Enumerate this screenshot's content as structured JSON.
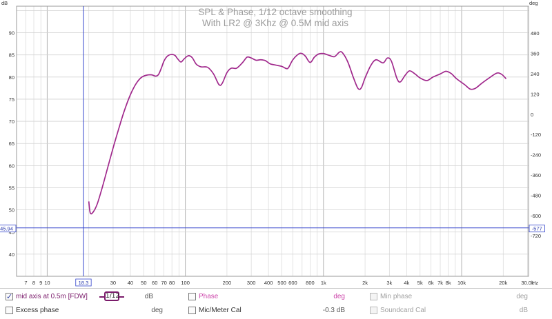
{
  "chart_data": {
    "type": "line",
    "title": "SPL & Phase, 1/12 octave smoothing",
    "subtitle": "With LR2 @ 3Khz @ 0.5M mid axis",
    "xscale": "log",
    "xlim": [
      6,
      30500
    ],
    "ylim": [
      35,
      96
    ],
    "y2lim": [
      -960,
      640
    ],
    "left_unit": "dB",
    "right_unit": "deg",
    "x_unit": "Hz",
    "x_ticks": [
      {
        "v": 7,
        "t": "7"
      },
      {
        "v": 8,
        "t": "8"
      },
      {
        "v": 9,
        "t": "9"
      },
      {
        "v": 10,
        "t": "10"
      },
      {
        "v": 30,
        "t": "30"
      },
      {
        "v": 40,
        "t": "40"
      },
      {
        "v": 50,
        "t": "50"
      },
      {
        "v": 60,
        "t": "60"
      },
      {
        "v": 70,
        "t": "70"
      },
      {
        "v": 80,
        "t": "80"
      },
      {
        "v": 100,
        "t": "100"
      },
      {
        "v": 200,
        "t": "200"
      },
      {
        "v": 300,
        "t": "300"
      },
      {
        "v": 400,
        "t": "400"
      },
      {
        "v": 500,
        "t": "500"
      },
      {
        "v": 600,
        "t": "600"
      },
      {
        "v": 800,
        "t": "800"
      },
      {
        "v": 1000,
        "t": "1k"
      },
      {
        "v": 2000,
        "t": "2k"
      },
      {
        "v": 3000,
        "t": "3k"
      },
      {
        "v": 4000,
        "t": "4k"
      },
      {
        "v": 5000,
        "t": "5k"
      },
      {
        "v": 6000,
        "t": "6k"
      },
      {
        "v": 7000,
        "t": "7k"
      },
      {
        "v": 8000,
        "t": "8k"
      },
      {
        "v": 10000,
        "t": "10k"
      },
      {
        "v": 20000,
        "t": "20k"
      },
      {
        "v": 30000,
        "t": "30.0k"
      }
    ],
    "y_ticks": [
      40,
      45,
      50,
      55,
      60,
      65,
      70,
      75,
      80,
      85,
      90
    ],
    "y2_ticks": [
      -720,
      -600,
      -480,
      -360,
      -240,
      -120,
      0,
      120,
      240,
      360,
      480
    ],
    "grid": true,
    "cursor": {
      "x": 18.3,
      "x_label": "18.3",
      "y": 45.94,
      "y_label": "45.94",
      "y2_label": "-577"
    },
    "series": [
      {
        "name": "mid axis at 0.5m [FDW]",
        "color": "#a0288c",
        "points": [
          [
            20,
            51.9
          ],
          [
            20.5,
            49.3
          ],
          [
            21.5,
            49.5
          ],
          [
            23,
            51.3
          ],
          [
            25,
            55
          ],
          [
            27,
            58.8
          ],
          [
            30,
            64
          ],
          [
            33,
            68.4
          ],
          [
            36,
            72.2
          ],
          [
            40,
            76
          ],
          [
            44,
            78.5
          ],
          [
            48,
            79.9
          ],
          [
            52,
            80.4
          ],
          [
            57,
            80.5
          ],
          [
            61,
            80.2
          ],
          [
            64,
            80.6
          ],
          [
            67,
            82
          ],
          [
            70,
            83.6
          ],
          [
            74,
            84.7
          ],
          [
            79,
            85.1
          ],
          [
            84,
            84.9
          ],
          [
            88,
            84.1
          ],
          [
            93,
            83.4
          ],
          [
            98,
            84.1
          ],
          [
            105,
            84.8
          ],
          [
            112,
            84.4
          ],
          [
            120,
            82.9
          ],
          [
            130,
            82.3
          ],
          [
            145,
            82.2
          ],
          [
            160,
            80.7
          ],
          [
            175,
            78.3
          ],
          [
            185,
            78.6
          ],
          [
            200,
            81
          ],
          [
            215,
            82
          ],
          [
            235,
            82
          ],
          [
            260,
            83.3
          ],
          [
            280,
            84.5
          ],
          [
            300,
            84.3
          ],
          [
            325,
            83.8
          ],
          [
            350,
            83.9
          ],
          [
            380,
            83.7
          ],
          [
            410,
            83
          ],
          [
            450,
            82.7
          ],
          [
            500,
            82.4
          ],
          [
            540,
            81.9
          ],
          [
            560,
            82.2
          ],
          [
            600,
            83.9
          ],
          [
            660,
            85.2
          ],
          [
            700,
            85.3
          ],
          [
            740,
            84.7
          ],
          [
            800,
            83.3
          ],
          [
            860,
            84.5
          ],
          [
            920,
            85.2
          ],
          [
            1000,
            85.3
          ],
          [
            1100,
            84.9
          ],
          [
            1200,
            84.6
          ],
          [
            1300,
            85.6
          ],
          [
            1370,
            85.5
          ],
          [
            1500,
            83.4
          ],
          [
            1650,
            79.8
          ],
          [
            1780,
            77.4
          ],
          [
            1880,
            77.6
          ],
          [
            2000,
            79.8
          ],
          [
            2200,
            82.6
          ],
          [
            2400,
            83.9
          ],
          [
            2700,
            83.2
          ],
          [
            2900,
            84.3
          ],
          [
            3100,
            83.6
          ],
          [
            3400,
            79.7
          ],
          [
            3600,
            78.9
          ],
          [
            3900,
            80.4
          ],
          [
            4200,
            81.4
          ],
          [
            4600,
            80.7
          ],
          [
            5000,
            79.8
          ],
          [
            5600,
            79.2
          ],
          [
            6200,
            80
          ],
          [
            7000,
            80.7
          ],
          [
            7700,
            81.3
          ],
          [
            8400,
            80.8
          ],
          [
            9200,
            79.6
          ],
          [
            10500,
            78.3
          ],
          [
            11500,
            77.3
          ],
          [
            12500,
            77.4
          ],
          [
            14000,
            78.6
          ],
          [
            16000,
            79.9
          ],
          [
            18000,
            80.9
          ],
          [
            19500,
            80.6
          ],
          [
            21000,
            79.6
          ]
        ]
      }
    ]
  },
  "controls": {
    "row1": {
      "main_label": "mid axis at 0.5m [FDW]",
      "smoothing_badge": "1/12",
      "main_unit": "dB",
      "phase_label": "Phase",
      "phase_unit": "deg",
      "min_phase_label": "Min phase",
      "min_phase_unit": "deg"
    },
    "row2": {
      "excess_label": "Excess phase",
      "excess_unit": "deg",
      "mic_label": "Mic/Meter Cal",
      "mic_value": "-0.3 dB",
      "soundcard_label": "Soundcard Cal",
      "soundcard_unit": "dB"
    }
  }
}
